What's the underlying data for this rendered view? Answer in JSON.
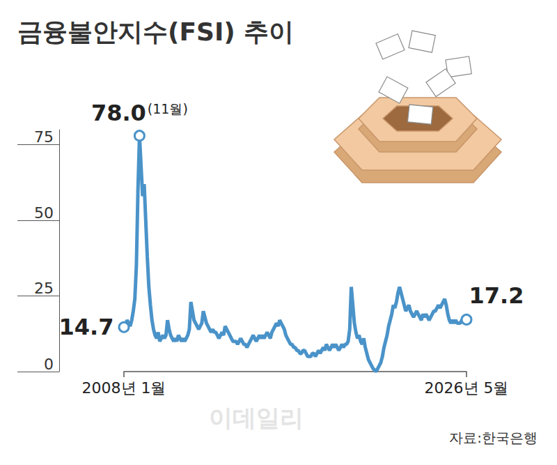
{
  "chart_data": {
    "type": "line",
    "title": "금융불안지수(FSI) 추이",
    "source": "자료:한국은행",
    "watermark": "이데일리",
    "color": "#4a93c9",
    "grid": false,
    "ylim": [
      0,
      80
    ],
    "yticks": [
      0,
      25,
      50,
      75
    ],
    "annotations": [
      {
        "index": 0,
        "label": "14.7"
      },
      {
        "index": 10,
        "label": "78.0",
        "note": "(11월)"
      },
      {
        "index": 220,
        "label": "17.2"
      }
    ],
    "categories": [
      "2008년 1월",
      null,
      null,
      null,
      null,
      null,
      null,
      null,
      null,
      null,
      null,
      null,
      null,
      null,
      null,
      null,
      null,
      null,
      null,
      null,
      null,
      null,
      null,
      null,
      null,
      null,
      null,
      null,
      null,
      null,
      null,
      null,
      null,
      null,
      null,
      null,
      null,
      null,
      null,
      null,
      null,
      null,
      null,
      null,
      null,
      null,
      null,
      null,
      null,
      null,
      null,
      null,
      null,
      null,
      null,
      null,
      null,
      null,
      null,
      null,
      null,
      null,
      null,
      null,
      null,
      null,
      null,
      null,
      null,
      null,
      null,
      null,
      null,
      null,
      null,
      null,
      null,
      null,
      null,
      null,
      null,
      null,
      null,
      null,
      null,
      null,
      null,
      null,
      null,
      null,
      null,
      null,
      null,
      null,
      null,
      null,
      null,
      null,
      null,
      null,
      null,
      null,
      null,
      null,
      null,
      null,
      null,
      null,
      null,
      null,
      null,
      null,
      null,
      null,
      null,
      null,
      null,
      null,
      null,
      null,
      null,
      null,
      null,
      null,
      null,
      null,
      null,
      null,
      null,
      null,
      null,
      null,
      null,
      null,
      null,
      null,
      null,
      null,
      null,
      null,
      null,
      null,
      null,
      null,
      null,
      null,
      null,
      null,
      null,
      null,
      null,
      null,
      null,
      null,
      null,
      null,
      null,
      null,
      null,
      null,
      null,
      null,
      null,
      null,
      null,
      null,
      null,
      null,
      null,
      null,
      null,
      null,
      null,
      null,
      null,
      null,
      null,
      null,
      null,
      null,
      null,
      null,
      null,
      null,
      null,
      null,
      null,
      null,
      null,
      null,
      null,
      null,
      null,
      null,
      null,
      null,
      null,
      null,
      null,
      null,
      null,
      null,
      null,
      null,
      null,
      null,
      null,
      null,
      null,
      null,
      null,
      null,
      null,
      null,
      null,
      null,
      null,
      null,
      null,
      null,
      "2026년 5월"
    ],
    "values": [
      14.7,
      15.5,
      17,
      16,
      15,
      17,
      20,
      24,
      35,
      60,
      78.0,
      68,
      58,
      62,
      50,
      38,
      28,
      22,
      17,
      14,
      12,
      11,
      13,
      10,
      11,
      12,
      11,
      12,
      17,
      14,
      12,
      11,
      10,
      11,
      10,
      12,
      11,
      10,
      11,
      10,
      11,
      12,
      14,
      23,
      20,
      17,
      16,
      15,
      14,
      15,
      16,
      20,
      18,
      16,
      15,
      14,
      13,
      14,
      13,
      13,
      12,
      11,
      12,
      13,
      12,
      15,
      14,
      13,
      12,
      11,
      10,
      10,
      10,
      9,
      10,
      11,
      10,
      9,
      9,
      8,
      9,
      10,
      11,
      12,
      11,
      10,
      11,
      12,
      11,
      12,
      11,
      12,
      13,
      12,
      11,
      13,
      14,
      15,
      16,
      15,
      17,
      16,
      15,
      14,
      12,
      11,
      10,
      9,
      9,
      8,
      8,
      7,
      7,
      6,
      6,
      7,
      7,
      6,
      5,
      5,
      5,
      6,
      6,
      5,
      6,
      7,
      6,
      7,
      8,
      7,
      9,
      8,
      7,
      8,
      9,
      8,
      9,
      8,
      7,
      8,
      9,
      8,
      9,
      9,
      10,
      14,
      28,
      22,
      16,
      13,
      11,
      12,
      10,
      9,
      11,
      8,
      6,
      4,
      3,
      2,
      1,
      0.5,
      0,
      1,
      2,
      3,
      5,
      8,
      10,
      12,
      15,
      17,
      19,
      22,
      21,
      23,
      26,
      28,
      26,
      24,
      22,
      20,
      21,
      22,
      20,
      19,
      18,
      19,
      20,
      19,
      18,
      17,
      19,
      18,
      19,
      18,
      17,
      18,
      19,
      20,
      20,
      21,
      22,
      21,
      22,
      23,
      24,
      22,
      19,
      17,
      16,
      17,
      16,
      17,
      16,
      16,
      16,
      17,
      17,
      16,
      17.2
    ]
  }
}
